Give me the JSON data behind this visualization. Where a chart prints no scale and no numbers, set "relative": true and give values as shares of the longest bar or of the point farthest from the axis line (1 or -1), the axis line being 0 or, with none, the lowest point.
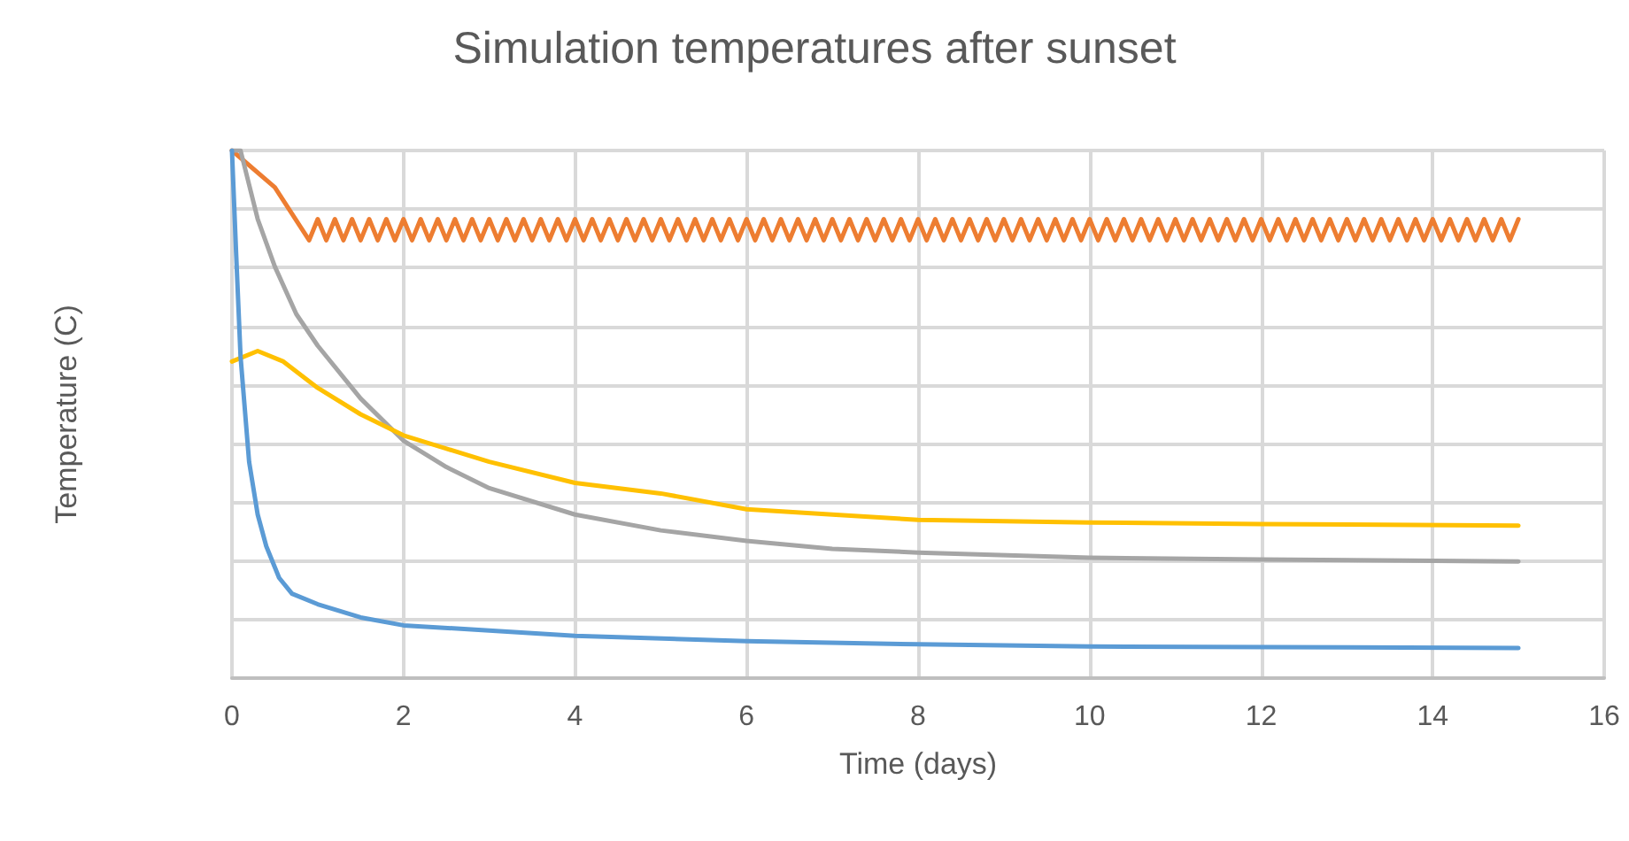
{
  "chart_data": {
    "type": "line",
    "title": "Simulation temperatures after sunset",
    "xlabel": "Time (days)",
    "ylabel": "Temperature (C)",
    "relative": true,
    "xlim": [
      0,
      16
    ],
    "xticks": [
      0,
      2,
      4,
      6,
      8,
      10,
      12,
      14,
      16
    ],
    "grid": true,
    "marker": "none",
    "line_style": "solid",
    "series": [
      {
        "color": "#ed7d31",
        "x": [
          0,
          0.5,
          0.9,
          1.0,
          1.1,
          1.2,
          1.3,
          1.4,
          1.5,
          1.6,
          1.7,
          1.8,
          1.9,
          2.0,
          2.1,
          2.2,
          2.3,
          2.4,
          2.5,
          2.6,
          2.7,
          2.8,
          2.9,
          3.0,
          3.1,
          3.2,
          3.3,
          3.4,
          3.5,
          3.6,
          3.7,
          3.8,
          3.9,
          4.0,
          4.1,
          4.2,
          4.3,
          4.4,
          4.5,
          4.6,
          4.7,
          4.8,
          4.9,
          5.0,
          5.1,
          5.2,
          5.3,
          5.4,
          5.5,
          5.6,
          5.7,
          5.8,
          5.9,
          6.0,
          6.1,
          6.2,
          6.3,
          6.4,
          6.5,
          6.6,
          6.7,
          6.8,
          6.9,
          7.0,
          7.1,
          7.2,
          7.3,
          7.4,
          7.5,
          7.6,
          7.7,
          7.8,
          7.9,
          8.0,
          8.1,
          8.2,
          8.3,
          8.4,
          8.5,
          8.6,
          8.7,
          8.8,
          8.9,
          9.0,
          9.1,
          9.2,
          9.3,
          9.4,
          9.5,
          9.6,
          9.7,
          9.8,
          9.9,
          10.0,
          10.1,
          10.2,
          10.3,
          10.4,
          10.5,
          10.6,
          10.7,
          10.8,
          10.9,
          11.0,
          11.1,
          11.2,
          11.3,
          11.4,
          11.5,
          11.6,
          11.7,
          11.8,
          11.9,
          12.0,
          12.1,
          12.2,
          12.3,
          12.4,
          12.5,
          12.6,
          12.7,
          12.8,
          12.9,
          13.0,
          13.1,
          13.2,
          13.3,
          13.4,
          13.5,
          13.6,
          13.7,
          13.8,
          13.9,
          14.0,
          14.1,
          14.2,
          14.3,
          14.4,
          14.5,
          14.6,
          14.7,
          14.8,
          14.9,
          15.0
        ],
        "values": [
          1.0,
          0.93,
          0.83,
          0.87,
          0.83,
          0.87,
          0.83,
          0.87,
          0.83,
          0.87,
          0.83,
          0.87,
          0.83,
          0.87,
          0.83,
          0.87,
          0.83,
          0.87,
          0.83,
          0.87,
          0.83,
          0.87,
          0.83,
          0.87,
          0.83,
          0.87,
          0.83,
          0.87,
          0.83,
          0.87,
          0.83,
          0.87,
          0.83,
          0.87,
          0.83,
          0.87,
          0.83,
          0.87,
          0.83,
          0.87,
          0.83,
          0.87,
          0.83,
          0.87,
          0.83,
          0.87,
          0.83,
          0.87,
          0.83,
          0.87,
          0.83,
          0.87,
          0.83,
          0.87,
          0.83,
          0.87,
          0.83,
          0.87,
          0.83,
          0.87,
          0.83,
          0.87,
          0.83,
          0.87,
          0.83,
          0.87,
          0.83,
          0.87,
          0.83,
          0.87,
          0.83,
          0.87,
          0.83,
          0.87,
          0.83,
          0.87,
          0.83,
          0.87,
          0.83,
          0.87,
          0.83,
          0.87,
          0.83,
          0.87,
          0.83,
          0.87,
          0.83,
          0.87,
          0.83,
          0.87,
          0.83,
          0.87,
          0.83,
          0.87,
          0.83,
          0.87,
          0.83,
          0.87,
          0.83,
          0.87,
          0.83,
          0.87,
          0.83,
          0.87,
          0.83,
          0.87,
          0.83,
          0.87,
          0.83,
          0.87,
          0.83,
          0.87,
          0.83,
          0.87,
          0.83,
          0.87,
          0.83,
          0.87,
          0.83,
          0.87,
          0.83,
          0.87,
          0.83,
          0.87,
          0.83,
          0.87,
          0.83,
          0.87,
          0.83,
          0.87,
          0.83,
          0.87,
          0.83,
          0.87,
          0.83,
          0.87,
          0.83,
          0.87,
          0.83,
          0.87,
          0.83,
          0.87,
          0.83,
          0.87
        ]
      },
      {
        "color": "#a5a5a5",
        "x": [
          0,
          0.1,
          0.3,
          0.5,
          0.75,
          1,
          1.5,
          2,
          2.5,
          3,
          4,
          5,
          6,
          7,
          8,
          10,
          12,
          15
        ],
        "values": [
          1.0,
          1.0,
          0.87,
          0.78,
          0.69,
          0.63,
          0.53,
          0.45,
          0.4,
          0.36,
          0.31,
          0.28,
          0.26,
          0.245,
          0.238,
          0.228,
          0.225,
          0.221
        ]
      },
      {
        "color": "#ffc000",
        "x": [
          0,
          0.3,
          0.6,
          1,
          1.5,
          2,
          3,
          4,
          5,
          6,
          7,
          8,
          10,
          12,
          15
        ],
        "values": [
          0.6,
          0.62,
          0.6,
          0.55,
          0.5,
          0.46,
          0.41,
          0.37,
          0.35,
          0.32,
          0.31,
          0.3,
          0.295,
          0.292,
          0.289
        ]
      },
      {
        "color": "#5b9bd5",
        "x": [
          0,
          0.05,
          0.1,
          0.2,
          0.3,
          0.4,
          0.55,
          0.7,
          1,
          1.5,
          2,
          3,
          4,
          6,
          8,
          10,
          15
        ],
        "values": [
          1.0,
          0.8,
          0.61,
          0.41,
          0.31,
          0.25,
          0.19,
          0.16,
          0.14,
          0.115,
          0.1,
          0.09,
          0.08,
          0.07,
          0.064,
          0.06,
          0.057
        ]
      }
    ]
  }
}
